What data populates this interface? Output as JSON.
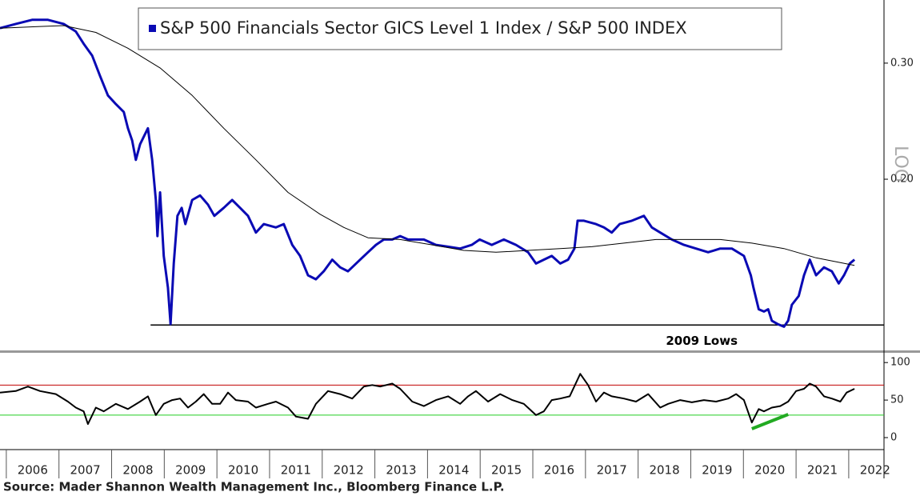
{
  "chart_data": [
    {
      "type": "line",
      "log": true,
      "scale_label": "LOG",
      "legend": "top",
      "xlim": [
        2005.88,
        2022.67
      ],
      "ylim": [
        0.11,
        0.374
      ],
      "yticks": [
        {
          "value": 0.3,
          "label": "0.30"
        },
        {
          "value": 0.2,
          "label": "0.20"
        }
      ],
      "series": [
        {
          "name": "S&P 500 Financials Sector GICS Level 1 Index / S&P 500 INDEX",
          "color": "#0a0ab4",
          "x": [
            2005.88,
            2006.18,
            2006.49,
            2006.79,
            2007.09,
            2007.32,
            2007.47,
            2007.63,
            2007.78,
            2007.93,
            2008.08,
            2008.23,
            2008.31,
            2008.39,
            2008.46,
            2008.54,
            2008.69,
            2008.77,
            2008.84,
            2008.87,
            2008.92,
            2008.99,
            2009.07,
            2009.12,
            2009.18,
            2009.25,
            2009.33,
            2009.4,
            2009.53,
            2009.68,
            2009.83,
            2009.95,
            2010.13,
            2010.29,
            2010.44,
            2010.59,
            2010.74,
            2010.89,
            2011.12,
            2011.27,
            2011.43,
            2011.58,
            2011.73,
            2011.88,
            2012.03,
            2012.19,
            2012.34,
            2012.49,
            2012.72,
            2012.87,
            2013.02,
            2013.17,
            2013.33,
            2013.48,
            2013.63,
            2013.78,
            2013.93,
            2014.16,
            2014.39,
            2014.62,
            2014.84,
            2014.99,
            2015.22,
            2015.45,
            2015.68,
            2015.91,
            2016.06,
            2016.21,
            2016.36,
            2016.52,
            2016.67,
            2016.79,
            2016.85,
            2016.97,
            2017.2,
            2017.35,
            2017.5,
            2017.65,
            2017.88,
            2018.11,
            2018.26,
            2018.42,
            2018.64,
            2018.87,
            2019.1,
            2019.33,
            2019.56,
            2019.78,
            2020.01,
            2020.14,
            2020.19,
            2020.29,
            2020.39,
            2020.47,
            2020.54,
            2020.65,
            2020.77,
            2020.85,
            2020.92,
            2021.05,
            2021.15,
            2021.26,
            2021.38,
            2021.53,
            2021.68,
            2021.81,
            2021.91,
            2022.02,
            2022.11
          ],
          "values": [
            0.339,
            0.344,
            0.349,
            0.349,
            0.344,
            0.335,
            0.321,
            0.308,
            0.287,
            0.268,
            0.26,
            0.253,
            0.239,
            0.229,
            0.214,
            0.226,
            0.239,
            0.214,
            0.186,
            0.164,
            0.191,
            0.153,
            0.137,
            0.1206,
            0.149,
            0.176,
            0.181,
            0.171,
            0.186,
            0.189,
            0.183,
            0.176,
            0.181,
            0.186,
            0.181,
            0.176,
            0.166,
            0.171,
            0.169,
            0.171,
            0.159,
            0.153,
            0.143,
            0.141,
            0.145,
            0.151,
            0.147,
            0.145,
            0.151,
            0.155,
            0.159,
            0.162,
            0.162,
            0.164,
            0.162,
            0.162,
            0.162,
            0.159,
            0.158,
            0.157,
            0.159,
            0.162,
            0.159,
            0.162,
            0.159,
            0.155,
            0.149,
            0.151,
            0.153,
            0.149,
            0.151,
            0.157,
            0.173,
            0.173,
            0.171,
            0.169,
            0.166,
            0.171,
            0.173,
            0.176,
            0.169,
            0.166,
            0.162,
            0.159,
            0.157,
            0.155,
            0.157,
            0.157,
            0.153,
            0.143,
            0.137,
            0.127,
            0.126,
            0.127,
            0.122,
            0.1206,
            0.1195,
            0.122,
            0.129,
            0.133,
            0.143,
            0.151,
            0.143,
            0.147,
            0.145,
            0.139,
            0.143,
            0.149,
            0.151
          ]
        },
        {
          "color": "#000000",
          "x": [
            2005.88,
            2006.64,
            2007.09,
            2007.7,
            2008.31,
            2008.92,
            2009.53,
            2010.13,
            2010.74,
            2011.35,
            2011.96,
            2012.41,
            2012.87,
            2013.48,
            2014.09,
            2014.69,
            2015.3,
            2015.91,
            2016.52,
            2017.12,
            2017.73,
            2018.34,
            2018.95,
            2019.56,
            2020.16,
            2020.77,
            2021.38,
            2022.11
          ],
          "values": [
            0.339,
            0.341,
            0.342,
            0.334,
            0.316,
            0.295,
            0.268,
            0.239,
            0.214,
            0.191,
            0.177,
            0.169,
            0.163,
            0.162,
            0.159,
            0.156,
            0.155,
            0.156,
            0.157,
            0.158,
            0.16,
            0.162,
            0.162,
            0.162,
            0.16,
            0.157,
            0.152,
            0.148
          ]
        }
      ],
      "hlines": [
        {
          "value": 0.1202,
          "x_from": 2008.74,
          "label": "2009 Lows",
          "color": "#000000"
        }
      ]
    },
    {
      "type": "line",
      "xlim": [
        2005.88,
        2022.67
      ],
      "ylim": [
        -16,
        113
      ],
      "yticks": [
        0,
        50,
        100
      ],
      "xticks": [
        2006,
        2007,
        2008,
        2009,
        2010,
        2011,
        2012,
        2013,
        2014,
        2015,
        2016,
        2017,
        2018,
        2019,
        2020,
        2021,
        2022
      ],
      "series": [
        {
          "color": "#000000",
          "x": [
            2005.88,
            2006.18,
            2006.41,
            2006.64,
            2006.94,
            2007.17,
            2007.32,
            2007.47,
            2007.55,
            2007.7,
            2007.85,
            2008.08,
            2008.31,
            2008.54,
            2008.69,
            2008.84,
            2008.99,
            2009.15,
            2009.3,
            2009.45,
            2009.6,
            2009.75,
            2009.91,
            2010.06,
            2010.21,
            2010.36,
            2010.59,
            2010.74,
            2010.97,
            2011.12,
            2011.35,
            2011.5,
            2011.73,
            2011.88,
            2012.11,
            2012.34,
            2012.57,
            2012.79,
            2012.95,
            2013.1,
            2013.33,
            2013.48,
            2013.71,
            2013.93,
            2014.16,
            2014.39,
            2014.62,
            2014.77,
            2014.92,
            2015.15,
            2015.38,
            2015.61,
            2015.83,
            2016.06,
            2016.21,
            2016.36,
            2016.52,
            2016.7,
            2016.9,
            2017.05,
            2017.2,
            2017.35,
            2017.5,
            2017.73,
            2017.96,
            2018.19,
            2018.42,
            2018.57,
            2018.8,
            2019.02,
            2019.25,
            2019.48,
            2019.71,
            2019.86,
            2020.01,
            2020.16,
            2020.29,
            2020.39,
            2020.54,
            2020.7,
            2020.85,
            2021.0,
            2021.15,
            2021.26,
            2021.38,
            2021.53,
            2021.68,
            2021.84,
            2021.96,
            2022.11
          ],
          "values": [
            60,
            62,
            68,
            62,
            58,
            48,
            40,
            35,
            18,
            40,
            35,
            45,
            38,
            48,
            55,
            30,
            45,
            50,
            52,
            40,
            48,
            58,
            45,
            45,
            60,
            50,
            48,
            40,
            45,
            48,
            40,
            28,
            25,
            45,
            62,
            58,
            52,
            68,
            70,
            68,
            72,
            65,
            48,
            42,
            50,
            55,
            45,
            55,
            62,
            48,
            58,
            50,
            45,
            30,
            35,
            50,
            52,
            55,
            85,
            70,
            48,
            60,
            55,
            52,
            48,
            58,
            40,
            45,
            50,
            47,
            50,
            48,
            52,
            58,
            50,
            20,
            38,
            35,
            40,
            42,
            48,
            62,
            65,
            72,
            68,
            55,
            52,
            48,
            60,
            65
          ]
        }
      ],
      "hlines": [
        {
          "value": 70,
          "color": "#c00000"
        },
        {
          "value": 30,
          "color": "#22cc22"
        }
      ],
      "segments": [
        {
          "x": [
            2020.16,
            2020.85
          ],
          "values": [
            11.7,
            30.9
          ],
          "color": "#22aa22"
        }
      ]
    }
  ],
  "source": "Source: Mader Shannon Wealth Management Inc., Bloomberg Finance L.P."
}
